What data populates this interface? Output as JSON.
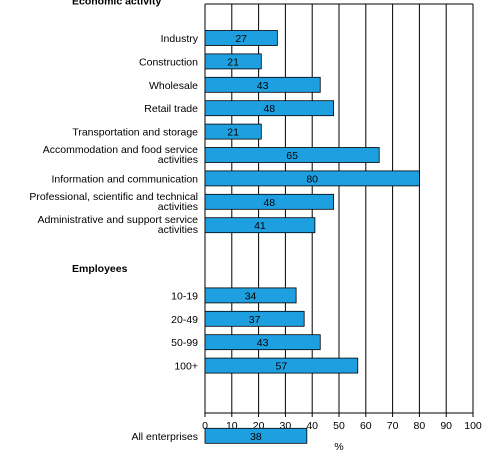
{
  "chart_data": {
    "type": "bar",
    "orientation": "horizontal",
    "sections": [
      {
        "label": "Economic activity",
        "rows": [
          {
            "label": [
              "Industry"
            ],
            "value": 27
          },
          {
            "label": [
              "Construction"
            ],
            "value": 21
          },
          {
            "label": [
              "Wholesale"
            ],
            "value": 43
          },
          {
            "label": [
              "Retail trade"
            ],
            "value": 48
          },
          {
            "label": [
              "Transportation and storage"
            ],
            "value": 21
          },
          {
            "label": [
              "Accommodation and food service",
              "activities"
            ],
            "value": 65
          },
          {
            "label": [
              "Information and communication"
            ],
            "value": 80
          },
          {
            "label": [
              "Professional, scientific and technical",
              "activities"
            ],
            "value": 48
          },
          {
            "label": [
              "Administrative and support service",
              "activities"
            ],
            "value": 41
          }
        ]
      },
      {
        "label": "Employees",
        "rows": [
          {
            "label": [
              "10-19"
            ],
            "value": 34
          },
          {
            "label": [
              "20-49"
            ],
            "value": 37
          },
          {
            "label": [
              "50-99"
            ],
            "value": 43
          },
          {
            "label": [
              "100+"
            ],
            "value": 57
          }
        ]
      },
      {
        "label": "",
        "rows": [
          {
            "label": [
              "All enterprises"
            ],
            "value": 38
          }
        ]
      }
    ],
    "xlim": [
      0,
      100
    ],
    "xticks": [
      0,
      10,
      20,
      30,
      40,
      50,
      60,
      70,
      80,
      90,
      100
    ],
    "xlabel": "%",
    "grid": "vertical",
    "colors": {
      "bar": "#1EA0E0",
      "bar_outline": "#000000",
      "grid": "#000000"
    }
  }
}
